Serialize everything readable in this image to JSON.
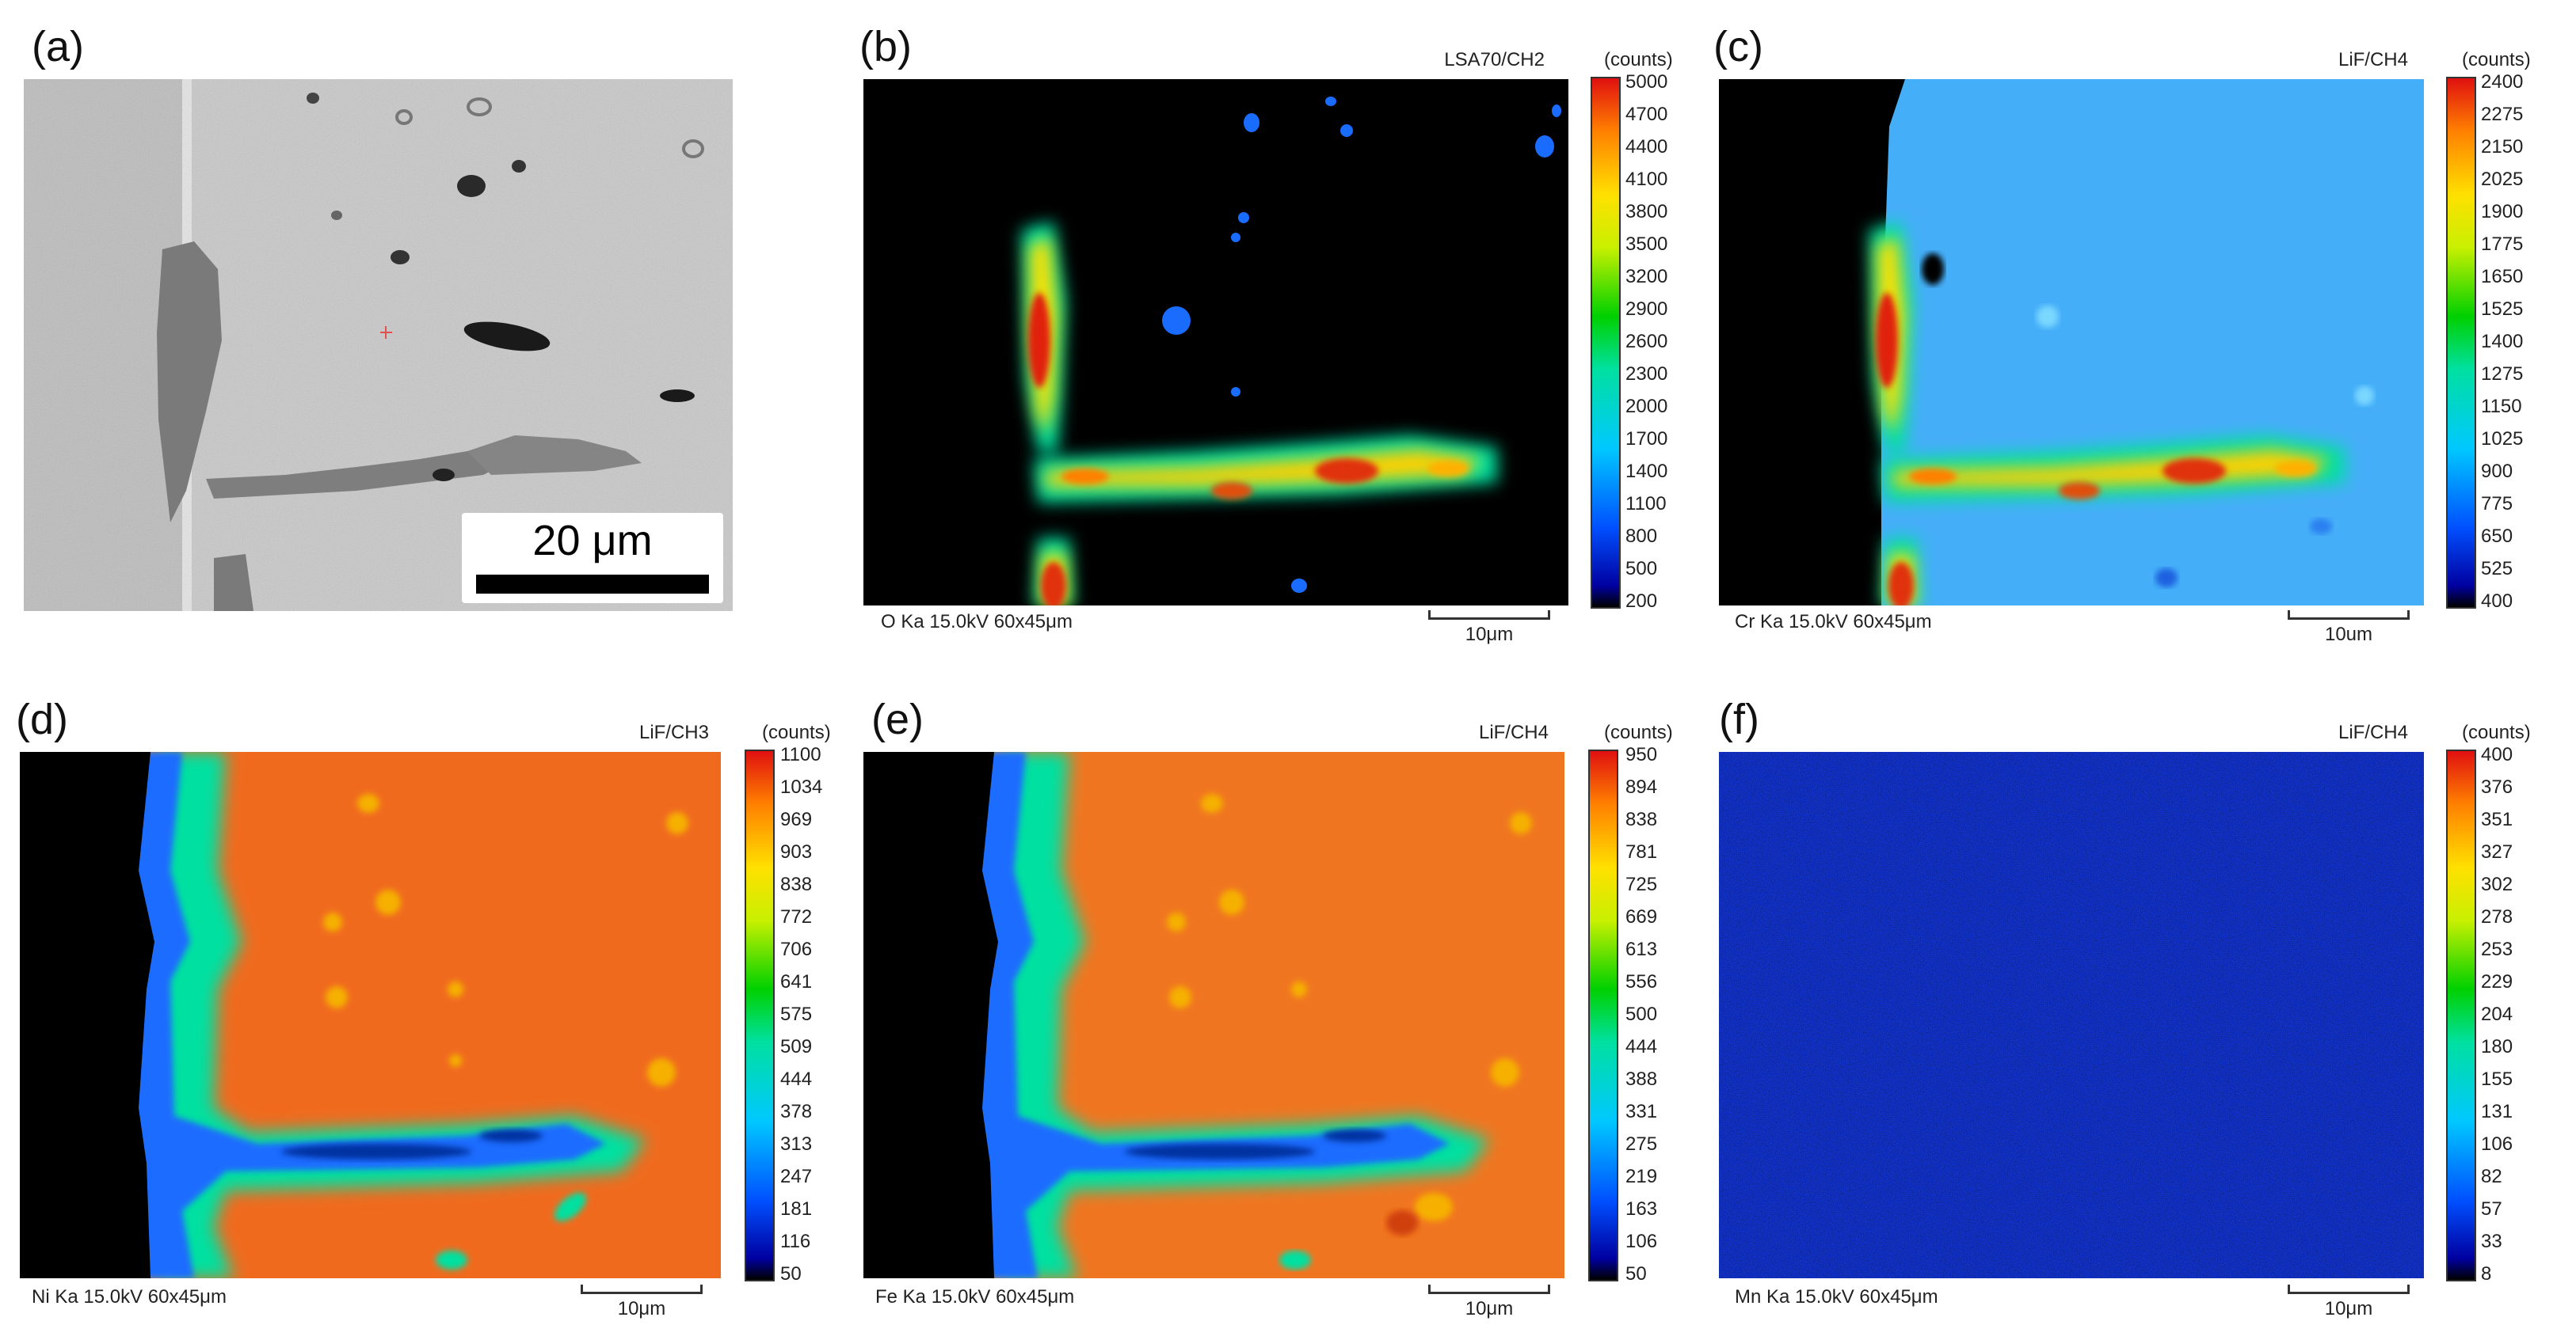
{
  "panels": {
    "a": {
      "label": "(a)",
      "scale_text": "20 μm"
    },
    "b": {
      "label": "(b)",
      "detector": "LSA70/CH2",
      "caption": "O Ka 15.0kV 60x45μm",
      "scale_text": "10μm",
      "units": "(counts)",
      "ticks": [
        "5000",
        "4700",
        "4400",
        "4100",
        "3800",
        "3500",
        "3200",
        "2900",
        "2600",
        "2300",
        "2000",
        "1700",
        "1400",
        "1100",
        "800",
        "500",
        "200"
      ]
    },
    "c": {
      "label": "(c)",
      "detector": "LiF/CH4",
      "caption": "Cr Ka 15.0kV 60x45μm",
      "scale_text": "10um",
      "units": "(counts)",
      "ticks": [
        "2400",
        "2275",
        "2150",
        "2025",
        "1900",
        "1775",
        "1650",
        "1525",
        "1400",
        "1275",
        "1150",
        "1025",
        "900",
        "775",
        "650",
        "525",
        "400"
      ]
    },
    "d": {
      "label": "(d)",
      "detector": "LiF/CH3",
      "caption": "Ni Ka 15.0kV 60x45μm",
      "scale_text": "10μm",
      "units": "(counts)",
      "ticks": [
        "1100",
        "1034",
        "969",
        "903",
        "838",
        "772",
        "706",
        "641",
        "575",
        "509",
        "444",
        "378",
        "313",
        "247",
        "181",
        "116",
        "50"
      ]
    },
    "e": {
      "label": "(e)",
      "detector": "LiF/CH4",
      "caption": "Fe Ka 15.0kV 60x45μm",
      "scale_text": "10μm",
      "units": "(counts)",
      "ticks": [
        "950",
        "894",
        "838",
        "781",
        "725",
        "669",
        "613",
        "556",
        "500",
        "444",
        "388",
        "331",
        "275",
        "219",
        "163",
        "106",
        "50"
      ]
    },
    "f": {
      "label": "(f)",
      "detector": "LiF/CH4",
      "caption": "Mn Ka 15.0kV 60x45μm",
      "scale_text": "10μm",
      "units": "(counts)",
      "ticks": [
        "400",
        "376",
        "351",
        "327",
        "302",
        "278",
        "253",
        "229",
        "204",
        "180",
        "155",
        "131",
        "106",
        "82",
        "57",
        "33",
        "8"
      ]
    }
  },
  "colors": {
    "map_black": "#000000",
    "map_blue": "#1a6cff",
    "map_lightblue": "#3fa9ff",
    "map_orange": "#f0641e",
    "map_dark_blue": "#1030c8",
    "sem_gray": "#c8c8c8"
  }
}
